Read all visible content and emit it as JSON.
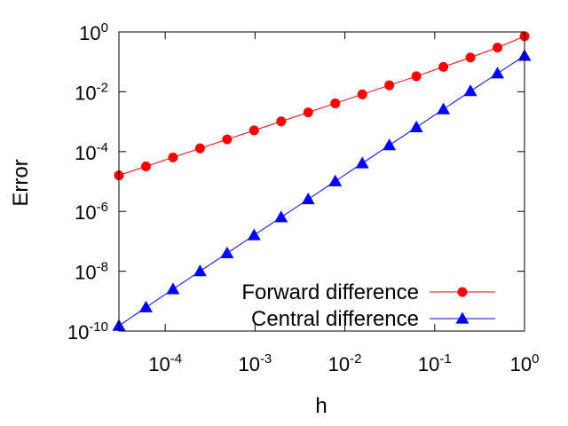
{
  "chart_data": {
    "type": "line",
    "title": "",
    "xlabel": "h",
    "ylabel": "Error",
    "xscale": "log",
    "yscale": "log",
    "xlim": [
      3.0517578125e-05,
      1
    ],
    "ylim": [
      1e-10,
      1
    ],
    "grid": false,
    "legend_position": "bottom-right",
    "x_ticks": [
      {
        "value": 0.0001,
        "base": "10",
        "exp": "-4"
      },
      {
        "value": 0.001,
        "base": "10",
        "exp": "-3"
      },
      {
        "value": 0.01,
        "base": "10",
        "exp": "-2"
      },
      {
        "value": 0.1,
        "base": "10",
        "exp": "-1"
      },
      {
        "value": 1,
        "base": "10",
        "exp": "0"
      }
    ],
    "y_ticks": [
      {
        "value": 1e-10,
        "base": "10",
        "exp": "-10"
      },
      {
        "value": 1e-08,
        "base": "10",
        "exp": "-8"
      },
      {
        "value": 1e-06,
        "base": "10",
        "exp": "-6"
      },
      {
        "value": 0.0001,
        "base": "10",
        "exp": "-4"
      },
      {
        "value": 0.01,
        "base": "10",
        "exp": "-2"
      },
      {
        "value": 1,
        "base": "10",
        "exp": "0"
      }
    ],
    "x": [
      1,
      0.5,
      0.25,
      0.125,
      0.0625,
      0.03125,
      0.015625,
      0.0078125,
      0.00390625,
      0.001953125,
      0.0009765625,
      0.00048828125,
      0.000244140625,
      0.0001220703125,
      6.103515625e-05,
      3.0517578125e-05
    ],
    "series": [
      {
        "name": "Forward difference",
        "color": "#ff0000",
        "marker": "circle",
        "values": [
          0.72,
          0.3,
          0.14,
          0.068,
          0.033,
          0.0165,
          0.0082,
          0.0041,
          0.00205,
          0.001025,
          0.000512,
          0.000256,
          0.000128,
          6.4e-05,
          3.2e-05,
          1.6e-05
        ]
      },
      {
        "name": "Central difference",
        "color": "#0000ff",
        "marker": "triangle",
        "values": [
          0.16,
          0.041,
          0.0105,
          0.0026,
          0.00065,
          0.000163,
          4.07e-05,
          1.02e-05,
          2.55e-06,
          6.4e-07,
          1.6e-07,
          4e-08,
          1e-08,
          2.5e-09,
          6.2e-10,
          1.5e-10
        ]
      }
    ]
  }
}
